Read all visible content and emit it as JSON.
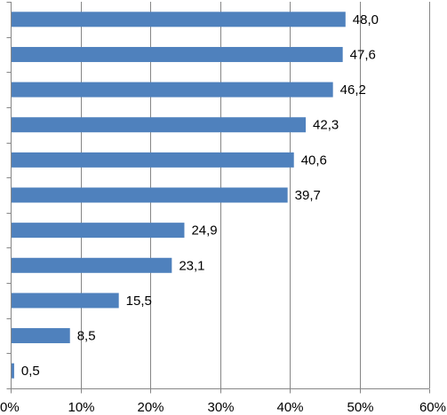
{
  "chart_data": {
    "type": "bar",
    "orientation": "horizontal",
    "categories": [
      "",
      "",
      "",
      "",
      "",
      "",
      "",
      "",
      "",
      "",
      ""
    ],
    "values": [
      48.0,
      47.6,
      46.2,
      42.3,
      40.6,
      39.7,
      24.9,
      23.1,
      15.5,
      8.5,
      0.5
    ],
    "value_labels": [
      "48,0",
      "47,6",
      "46,2",
      "42,3",
      "40,6",
      "39,7",
      "24,9",
      "23,1",
      "15,5",
      "8,5",
      "0,5"
    ],
    "x_ticks": [
      {
        "value": 0,
        "label": "0%"
      },
      {
        "value": 10,
        "label": "10%"
      },
      {
        "value": 20,
        "label": "20%"
      },
      {
        "value": 30,
        "label": "30%"
      },
      {
        "value": 40,
        "label": "40%"
      },
      {
        "value": 50,
        "label": "50%"
      },
      {
        "value": 60,
        "label": "60%"
      }
    ],
    "xlim": [
      0,
      60
    ],
    "title": "",
    "xlabel": "",
    "ylabel": "",
    "grid": "vertical",
    "legend": "none",
    "colors": {
      "bar": "#4F81BD",
      "grid": "#868686",
      "axis": "#868686",
      "text": "#000000"
    }
  }
}
